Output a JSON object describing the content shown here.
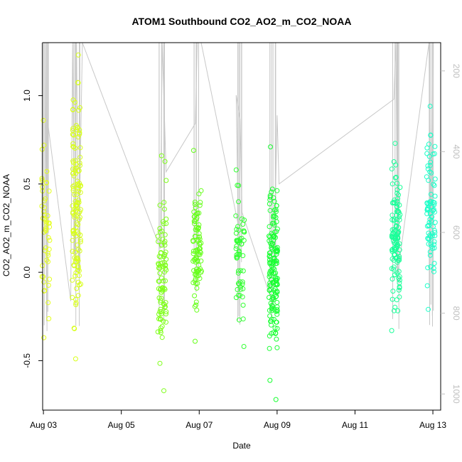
{
  "chart_data": {
    "type": "scatter",
    "title": "ATOM1 Southbound CO2_AO2_m_CO2_NOAA",
    "xlabel": "Date",
    "ylabel": "CO2_AO2_m_CO2_NOAA",
    "xlim": [
      2.98,
      13.2
    ],
    "ylim": [
      -0.78,
      1.3
    ],
    "x_ticks": [
      {
        "value": 3,
        "label": "Aug 03"
      },
      {
        "value": 5,
        "label": "Aug 05"
      },
      {
        "value": 7,
        "label": "Aug 07"
      },
      {
        "value": 9,
        "label": "Aug 09"
      },
      {
        "value": 11,
        "label": "Aug 11"
      },
      {
        "value": 13,
        "label": "Aug 13"
      }
    ],
    "y_ticks": [
      {
        "value": -0.5,
        "label": "-0.5"
      },
      {
        "value": 0.0,
        "label": "0.0"
      },
      {
        "value": 0.5,
        "label": "0.5"
      },
      {
        "value": 1.0,
        "label": "1.0"
      }
    ],
    "y2_axis": {
      "lim": [
        1040,
        130
      ],
      "ticks": [
        {
          "value": 200,
          "label": "200"
        },
        {
          "value": 400,
          "label": "400"
        },
        {
          "value": 600,
          "label": "600"
        },
        {
          "value": 800,
          "label": "800"
        },
        {
          "value": 1000,
          "label": "1000"
        }
      ],
      "color": "#bfbfbf"
    },
    "clusters": [
      {
        "x": 3.05,
        "y_min": -0.37,
        "y_max": 0.86,
        "n": 50,
        "color": "#e4ff1a"
      },
      {
        "x": 3.85,
        "y_min": -0.49,
        "y_max": 1.23,
        "n": 130,
        "color": "#d8ff1a"
      },
      {
        "x": 6.05,
        "y_min": -0.67,
        "y_max": 0.66,
        "n": 90,
        "color": "#7fff1a"
      },
      {
        "x": 6.95,
        "y_min": -0.39,
        "y_max": 0.69,
        "n": 90,
        "color": "#66ff1a"
      },
      {
        "x": 8.05,
        "y_min": -0.42,
        "y_max": 0.58,
        "n": 60,
        "color": "#33ff33"
      },
      {
        "x": 8.9,
        "y_min": -0.72,
        "y_max": 0.71,
        "n": 160,
        "color": "#1aff33"
      },
      {
        "x": 12.05,
        "y_min": -0.33,
        "y_max": 0.73,
        "n": 120,
        "color": "#1aff99"
      },
      {
        "x": 12.95,
        "y_min": -0.21,
        "y_max": 0.94,
        "n": 80,
        "color": "#1affc8"
      }
    ],
    "pressure_trace": [
      {
        "x": 3.02,
        "p": 830
      },
      {
        "x": 3.05,
        "p": 130
      },
      {
        "x": 3.08,
        "p": 820
      },
      {
        "x": 3.1,
        "p": 320
      },
      {
        "x": 3.7,
        "p": 770
      },
      {
        "x": 3.75,
        "p": 130
      },
      {
        "x": 3.8,
        "p": 680
      },
      {
        "x": 3.85,
        "p": 130
      },
      {
        "x": 3.9,
        "p": 700
      },
      {
        "x": 4.0,
        "p": 130
      },
      {
        "x": 6.0,
        "p": 640
      },
      {
        "x": 6.05,
        "p": 130
      },
      {
        "x": 6.15,
        "p": 450
      },
      {
        "x": 6.9,
        "p": 330
      },
      {
        "x": 6.95,
        "p": 130
      },
      {
        "x": 7.05,
        "p": 130
      },
      {
        "x": 8.0,
        "p": 580
      },
      {
        "x": 7.95,
        "p": 260
      },
      {
        "x": 8.05,
        "p": 320
      },
      {
        "x": 8.1,
        "p": 550
      },
      {
        "x": 8.9,
        "p": 780
      },
      {
        "x": 9.0,
        "p": 310
      },
      {
        "x": 9.05,
        "p": 480
      },
      {
        "x": 12.0,
        "p": 270
      },
      {
        "x": 12.05,
        "p": 130
      },
      {
        "x": 12.1,
        "p": 700
      },
      {
        "x": 12.9,
        "p": 130
      },
      {
        "x": 12.95,
        "p": 680
      },
      {
        "x": 13.0,
        "p": 130
      }
    ]
  }
}
